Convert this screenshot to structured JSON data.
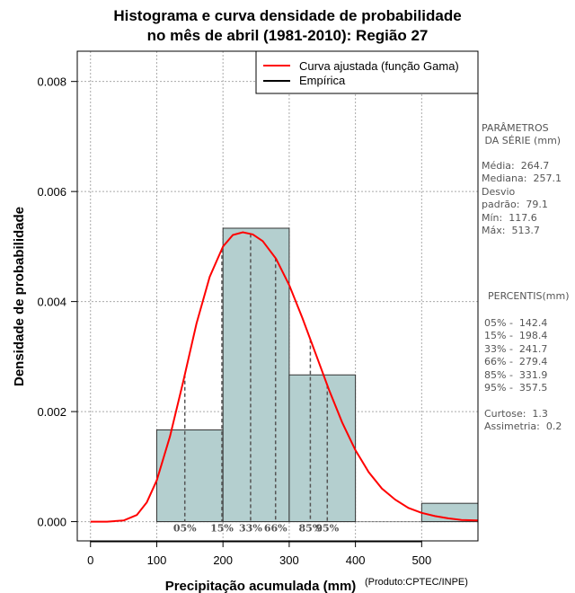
{
  "chart_data": {
    "type": "bar",
    "title_line1": "Histograma e curva densidade de probabilidade",
    "title_line2": "no mês de abril (1981-2010): Região 27",
    "xlabel": "Precipitação acumulada (mm)",
    "ylabel": "Densidade de probabilidade",
    "credit": "(Produto:CPTEC/INPE)",
    "xlim": [
      -20,
      585
    ],
    "ylim": [
      -0.00035,
      0.00855
    ],
    "x_ticks": [
      0,
      100,
      200,
      300,
      400,
      500
    ],
    "y_ticks": [
      0.0,
      0.002,
      0.004,
      0.006,
      0.008
    ],
    "y_tick_labels": [
      "0.000",
      "0.002",
      "0.004",
      "0.006",
      "0.008"
    ],
    "bins": [
      {
        "from": 100,
        "to": 200,
        "density": 0.001667
      },
      {
        "from": 200,
        "to": 300,
        "density": 0.005333
      },
      {
        "from": 300,
        "to": 400,
        "density": 0.002667
      },
      {
        "from": 500,
        "to": 600,
        "density": 0.000333
      }
    ],
    "fitted_curve": {
      "name": "Curva ajustada (função Gama)",
      "distribution": "gamma",
      "color": "#ff0000",
      "points": [
        [
          0,
          0.0
        ],
        [
          25,
          0.0
        ],
        [
          50,
          2e-05
        ],
        [
          70,
          0.00012
        ],
        [
          85,
          0.00035
        ],
        [
          100,
          0.00075
        ],
        [
          120,
          0.00155
        ],
        [
          140,
          0.00255
        ],
        [
          160,
          0.0036
        ],
        [
          180,
          0.00445
        ],
        [
          200,
          0.005
        ],
        [
          215,
          0.00521
        ],
        [
          230,
          0.00526
        ],
        [
          245,
          0.00522
        ],
        [
          260,
          0.0051
        ],
        [
          280,
          0.00478
        ],
        [
          300,
          0.0043
        ],
        [
          320,
          0.0037
        ],
        [
          340,
          0.00305
        ],
        [
          360,
          0.0024
        ],
        [
          380,
          0.0018
        ],
        [
          400,
          0.0013
        ],
        [
          420,
          0.0009
        ],
        [
          440,
          0.0006
        ],
        [
          460,
          0.0004
        ],
        [
          480,
          0.00025
        ],
        [
          500,
          0.00016
        ],
        [
          520,
          0.0001
        ],
        [
          540,
          6e-05
        ],
        [
          560,
          3e-05
        ],
        [
          585,
          2e-05
        ]
      ]
    },
    "empirical_name": "Empírica",
    "percentiles": [
      {
        "label": "05%",
        "value": 142.4
      },
      {
        "label": "15%",
        "value": 198.4
      },
      {
        "label": "33%",
        "value": 241.7
      },
      {
        "label": "66%",
        "value": 279.4
      },
      {
        "label": "85%",
        "value": 331.9
      },
      {
        "label": "95%",
        "value": 357.5
      }
    ],
    "colors": {
      "bar_fill": "#b4cfcf",
      "bar_stroke": "#333333",
      "grid": "#aaaaaa",
      "curve": "#ff0000"
    }
  },
  "side_panel": {
    "params_title_1": "PARÂMETROS",
    "params_title_2": " DA SÉRIE (mm)",
    "media": "Média:  264.7",
    "mediana": "Mediana:  257.1",
    "desvio_1": "Desvio",
    "desvio_2": "padrão:  79.1",
    "min": "Mín:  117.6",
    "max": "Máx:  513.7",
    "percentis_title": "PERCENTIS(mm)",
    "p05": "05% -  142.4",
    "p15": "15% -  198.4",
    "p33": "33% -  241.7",
    "p66": "66% -  279.4",
    "p85": "85% -  331.9",
    "p95": "95% -  357.5",
    "curtose": "Curtose:  1.3",
    "assimetria": "Assimetria:  0.2"
  }
}
